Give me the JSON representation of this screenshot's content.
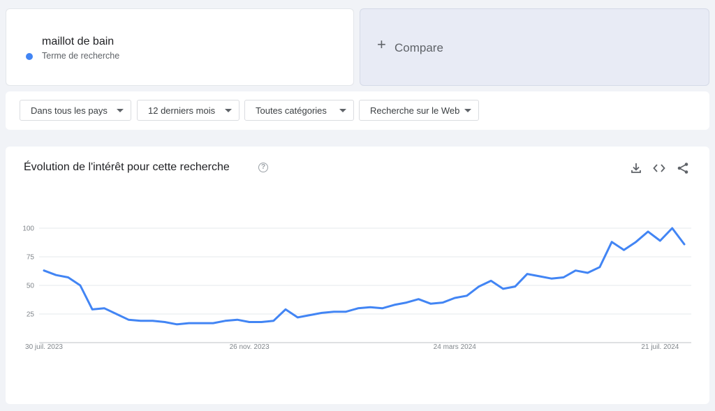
{
  "term": {
    "title": "maillot de bain",
    "subtitle": "Terme de recherche",
    "color": "#4285f4"
  },
  "compare": {
    "plus": "+",
    "label": "Compare"
  },
  "filters": [
    {
      "label": "Dans tous les pays"
    },
    {
      "label": "12 derniers mois"
    },
    {
      "label": "Toutes catégories"
    },
    {
      "label": "Recherche sur le Web"
    }
  ],
  "chart_card": {
    "title": "Évolution de l'intérêt pour cette recherche",
    "help": "?",
    "icons": [
      "download-icon",
      "embed-code-icon",
      "share-icon"
    ]
  },
  "chart_data": {
    "type": "line",
    "title": "Évolution de l'intérêt pour cette recherche",
    "xlabel": "",
    "ylabel": "",
    "ylim": [
      0,
      100
    ],
    "y_ticks": [
      25,
      50,
      75,
      100
    ],
    "x_tick_labels": [
      {
        "index": 0,
        "label": "30 juil. 2023"
      },
      {
        "index": 17,
        "label": "26 nov. 2023"
      },
      {
        "index": 34,
        "label": "24 mars 2024"
      },
      {
        "index": 51,
        "label": "21 juil. 2024"
      }
    ],
    "grid": true,
    "series": [
      {
        "color": "#4285f4",
        "values": [
          63,
          59,
          57,
          50,
          29,
          30,
          25,
          20,
          19,
          19,
          18,
          16,
          17,
          17,
          17,
          19,
          20,
          18,
          18,
          19,
          29,
          22,
          24,
          26,
          27,
          27,
          30,
          31,
          30,
          33,
          35,
          38,
          34,
          35,
          39,
          41,
          49,
          54,
          47,
          49,
          60,
          58,
          56,
          57,
          63,
          61,
          66,
          88,
          81,
          88,
          97,
          89,
          100,
          86
        ]
      }
    ]
  }
}
